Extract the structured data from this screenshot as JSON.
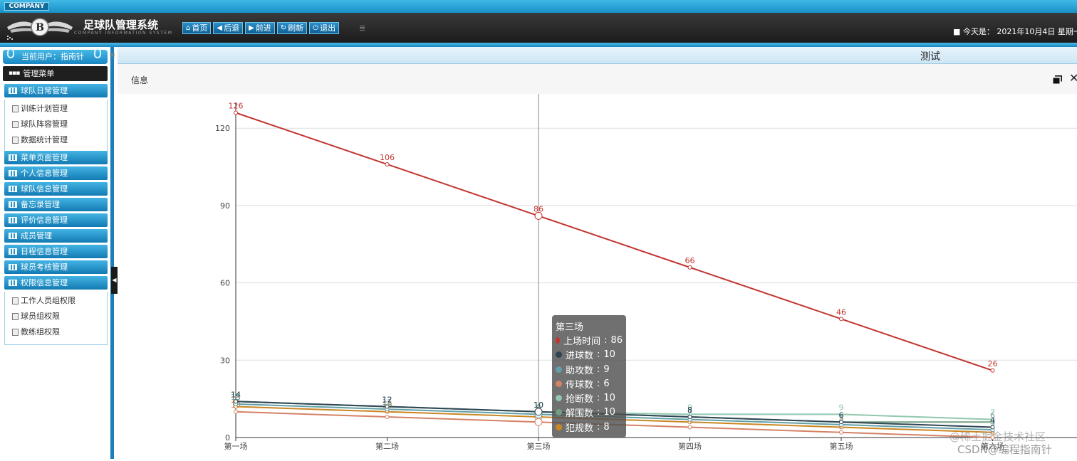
{
  "company_badge": "COMPANY",
  "app": {
    "title": "足球队管理系统",
    "subtitle": "COMPANY INFORMATION SYSTEM",
    "logo_text": "B"
  },
  "nav": [
    {
      "label": "首页",
      "icon": "home-icon"
    },
    {
      "label": "后退",
      "icon": "arrow-left-icon"
    },
    {
      "label": "前进",
      "icon": "arrow-right-icon"
    },
    {
      "label": "刷新",
      "icon": "refresh-icon"
    },
    {
      "label": "退出",
      "icon": "power-icon"
    }
  ],
  "date_text": "今天是： 2021年10月4日 星期一",
  "sidebar": {
    "current_user": "当前用户：指南针",
    "menu_header": "管理菜单",
    "groups": [
      {
        "label": "球队日常管理",
        "items": [
          "训练计划管理",
          "球队阵容管理",
          "数据统计管理"
        ]
      },
      {
        "label": "菜单页面管理",
        "items": []
      },
      {
        "label": "个人信息管理",
        "items": []
      },
      {
        "label": "球队信息管理",
        "items": []
      },
      {
        "label": "备忘录管理",
        "items": []
      },
      {
        "label": "评价信息管理",
        "items": []
      },
      {
        "label": "成员管理",
        "items": []
      },
      {
        "label": "日程信息管理",
        "items": []
      },
      {
        "label": "球员考核管理",
        "items": []
      },
      {
        "label": "权限信息管理",
        "items": [
          "工作人员组权限",
          "球员组权限",
          "教练组权限"
        ]
      }
    ]
  },
  "tab": {
    "title": "测试"
  },
  "panel": {
    "title": "信息"
  },
  "chart_data": {
    "type": "line",
    "categories": [
      "第一场",
      "第二场",
      "第三场",
      "第四场",
      "第五场",
      "第六场"
    ],
    "ylim": [
      0,
      130
    ],
    "yticks": [
      0,
      30,
      60,
      90,
      120
    ],
    "grid": true,
    "series": [
      {
        "name": "上场时间",
        "color": "#c23531",
        "values": [
          126,
          106,
          86,
          66,
          46,
          26
        ]
      },
      {
        "name": "进球数",
        "color": "#2f4554",
        "values": [
          14,
          12,
          10,
          8,
          6,
          4
        ]
      },
      {
        "name": "助攻数",
        "color": "#61a0a8",
        "values": [
          13,
          11,
          9,
          7,
          5,
          3
        ]
      },
      {
        "name": "传球数",
        "color": "#d48265",
        "values": [
          10,
          8,
          6,
          4,
          2,
          0
        ]
      },
      {
        "name": "抢断数",
        "color": "#91c7ae",
        "values": [
          14,
          12,
          10,
          9,
          9,
          7
        ]
      },
      {
        "name": "解围数",
        "color": "#749f83",
        "values": [
          14,
          12,
          10,
          8,
          6,
          6
        ]
      },
      {
        "name": "犯规数",
        "color": "#ca8622",
        "values": [
          12,
          10,
          8,
          6,
          4,
          2
        ]
      }
    ],
    "tooltip": {
      "category": "第三场"
    }
  },
  "watermark": [
    "@稀土掘金技术社区",
    "CSDN@编程指南针"
  ]
}
